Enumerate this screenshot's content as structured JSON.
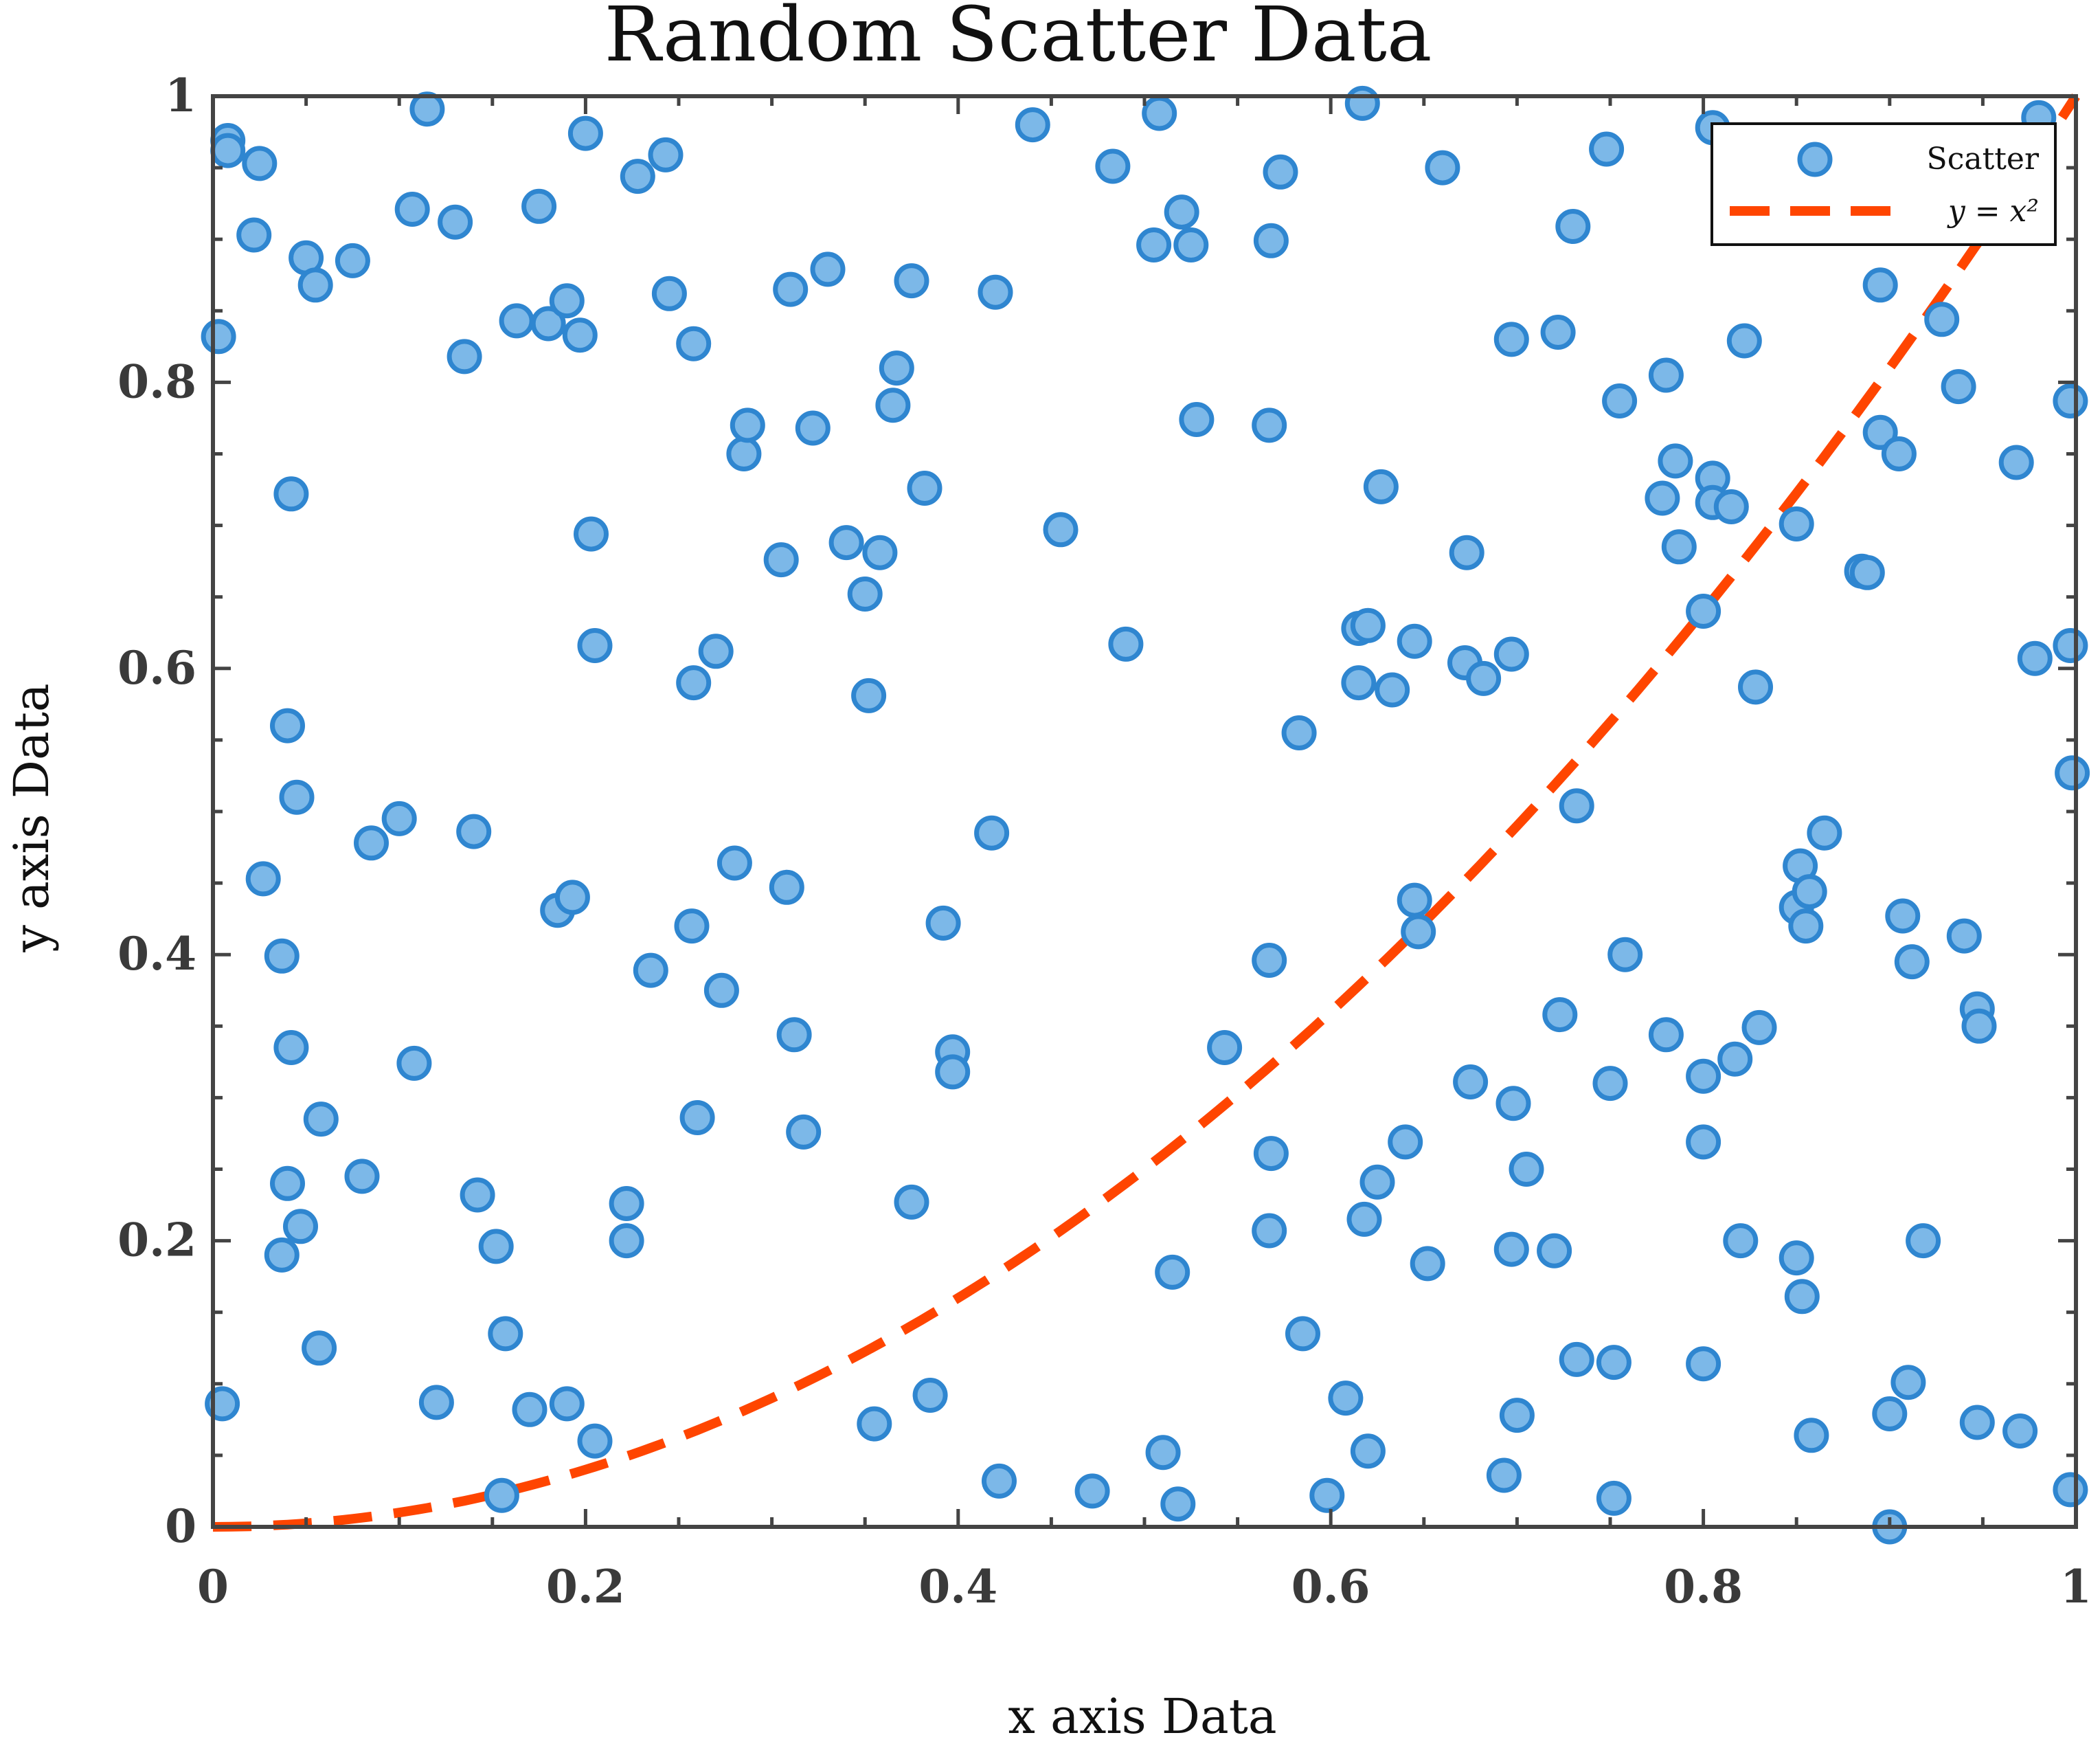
{
  "chart_data": {
    "type": "scatter",
    "title": "Random Scatter Data",
    "xlabel": "x axis Data",
    "ylabel": "y axis Data",
    "xlim": [
      0,
      1
    ],
    "ylim": [
      0,
      1
    ],
    "xticks": [
      0,
      0.2,
      0.4,
      0.6,
      0.8,
      1
    ],
    "yticks": [
      0,
      0.2,
      0.4,
      0.6,
      0.8,
      1
    ],
    "xtick_labels": [
      "0",
      "0.2",
      "0.4",
      "0.6",
      "0.8",
      "1"
    ],
    "ytick_labels": [
      "0",
      "0.2",
      "0.4",
      "0.6",
      "0.8",
      "1"
    ],
    "grid": false,
    "legend": {
      "position": "top-right",
      "entries": [
        "Scatter",
        "y = x²"
      ]
    },
    "colors": {
      "scatter_fill": "#7cb8e8",
      "scatter_edge": "#2f86d0",
      "line": "#ff4500",
      "axis": "#444444"
    },
    "series": [
      {
        "name": "Scatter",
        "kind": "scatter",
        "points": [
          [
            0.003,
            0.832
          ],
          [
            0.008,
            0.969
          ],
          [
            0.008,
            0.962
          ],
          [
            0.025,
            0.953
          ],
          [
            0.022,
            0.903
          ],
          [
            0.05,
            0.887
          ],
          [
            0.055,
            0.868
          ],
          [
            0.075,
            0.885
          ],
          [
            0.115,
            0.991
          ],
          [
            0.107,
            0.921
          ],
          [
            0.13,
            0.912
          ],
          [
            0.175,
            0.923
          ],
          [
            0.2,
            0.974
          ],
          [
            0.228,
            0.944
          ],
          [
            0.243,
            0.959
          ],
          [
            0.245,
            0.862
          ],
          [
            0.135,
            0.818
          ],
          [
            0.163,
            0.843
          ],
          [
            0.18,
            0.841
          ],
          [
            0.19,
            0.857
          ],
          [
            0.197,
            0.833
          ],
          [
            0.258,
            0.827
          ],
          [
            0.042,
            0.722
          ],
          [
            0.203,
            0.694
          ],
          [
            0.205,
            0.616
          ],
          [
            0.04,
            0.56
          ],
          [
            0.045,
            0.51
          ],
          [
            0.085,
            0.478
          ],
          [
            0.1,
            0.495
          ],
          [
            0.14,
            0.486
          ],
          [
            0.185,
            0.431
          ],
          [
            0.193,
            0.44
          ],
          [
            0.027,
            0.453
          ],
          [
            0.037,
            0.399
          ],
          [
            0.042,
            0.335
          ],
          [
            0.058,
            0.285
          ],
          [
            0.04,
            0.24
          ],
          [
            0.047,
            0.21
          ],
          [
            0.037,
            0.19
          ],
          [
            0.08,
            0.245
          ],
          [
            0.108,
            0.324
          ],
          [
            0.142,
            0.232
          ],
          [
            0.152,
            0.196
          ],
          [
            0.157,
            0.135
          ],
          [
            0.057,
            0.125
          ],
          [
            0.005,
            0.086
          ],
          [
            0.12,
            0.087
          ],
          [
            0.17,
            0.082
          ],
          [
            0.19,
            0.086
          ],
          [
            0.205,
            0.06
          ],
          [
            0.155,
            0.022
          ],
          [
            0.222,
            0.226
          ],
          [
            0.222,
            0.2
          ],
          [
            0.235,
            0.389
          ],
          [
            0.257,
            0.42
          ],
          [
            0.26,
            0.286
          ],
          [
            0.258,
            0.59
          ],
          [
            0.27,
            0.612
          ],
          [
            0.273,
            0.375
          ],
          [
            0.28,
            0.464
          ],
          [
            0.285,
            0.75
          ],
          [
            0.287,
            0.77
          ],
          [
            0.305,
            0.676
          ],
          [
            0.308,
            0.447
          ],
          [
            0.312,
            0.344
          ],
          [
            0.317,
            0.276
          ],
          [
            0.31,
            0.865
          ],
          [
            0.322,
            0.768
          ],
          [
            0.33,
            0.879
          ],
          [
            0.34,
            0.688
          ],
          [
            0.35,
            0.652
          ],
          [
            0.352,
            0.581
          ],
          [
            0.358,
            0.681
          ],
          [
            0.367,
            0.81
          ],
          [
            0.365,
            0.784
          ],
          [
            0.375,
            0.871
          ],
          [
            0.382,
            0.726
          ],
          [
            0.375,
            0.227
          ],
          [
            0.385,
            0.092
          ],
          [
            0.355,
            0.072
          ],
          [
            0.392,
            0.422
          ],
          [
            0.397,
            0.332
          ],
          [
            0.397,
            0.318
          ],
          [
            0.42,
            0.863
          ],
          [
            0.418,
            0.485
          ],
          [
            0.422,
            0.032
          ],
          [
            0.44,
            0.98
          ],
          [
            0.455,
            0.697
          ],
          [
            0.472,
            0.025
          ],
          [
            0.483,
            0.951
          ],
          [
            0.49,
            0.617
          ],
          [
            0.505,
            0.896
          ],
          [
            0.508,
            0.988
          ],
          [
            0.52,
            0.919
          ],
          [
            0.525,
            0.896
          ],
          [
            0.528,
            0.774
          ],
          [
            0.515,
            0.178
          ],
          [
            0.51,
            0.052
          ],
          [
            0.518,
            0.016
          ],
          [
            0.543,
            0.335
          ],
          [
            0.567,
            0.77
          ],
          [
            0.568,
            0.899
          ],
          [
            0.573,
            0.947
          ],
          [
            0.567,
            0.396
          ],
          [
            0.568,
            0.261
          ],
          [
            0.567,
            0.207
          ],
          [
            0.585,
            0.135
          ],
          [
            0.583,
            0.555
          ],
          [
            0.598,
            0.022
          ],
          [
            0.608,
            0.09
          ],
          [
            0.617,
            0.995
          ],
          [
            0.615,
            0.628
          ],
          [
            0.62,
            0.63
          ],
          [
            0.615,
            0.59
          ],
          [
            0.627,
            0.727
          ],
          [
            0.633,
            0.585
          ],
          [
            0.618,
            0.215
          ],
          [
            0.625,
            0.241
          ],
          [
            0.62,
            0.053
          ],
          [
            0.64,
            0.269
          ],
          [
            0.645,
            0.619
          ],
          [
            0.645,
            0.438
          ],
          [
            0.647,
            0.416
          ],
          [
            0.652,
            0.184
          ],
          [
            0.66,
            0.95
          ],
          [
            0.672,
            0.604
          ],
          [
            0.673,
            0.681
          ],
          [
            0.675,
            0.311
          ],
          [
            0.682,
            0.593
          ],
          [
            0.697,
            0.83
          ],
          [
            0.697,
            0.61
          ],
          [
            0.698,
            0.296
          ],
          [
            0.697,
            0.194
          ],
          [
            0.7,
            0.078
          ],
          [
            0.705,
            0.25
          ],
          [
            0.693,
            0.036
          ],
          [
            0.722,
            0.835
          ],
          [
            0.73,
            0.909
          ],
          [
            0.732,
            0.504
          ],
          [
            0.723,
            0.358
          ],
          [
            0.72,
            0.193
          ],
          [
            0.732,
            0.117
          ],
          [
            0.752,
            0.115
          ],
          [
            0.748,
            0.963
          ],
          [
            0.755,
            0.787
          ],
          [
            0.758,
            0.4
          ],
          [
            0.75,
            0.31
          ],
          [
            0.752,
            0.02
          ],
          [
            0.78,
            0.805
          ],
          [
            0.785,
            0.745
          ],
          [
            0.778,
            0.719
          ],
          [
            0.787,
            0.685
          ],
          [
            0.78,
            0.344
          ],
          [
            0.8,
            0.64
          ],
          [
            0.805,
            0.978
          ],
          [
            0.805,
            0.733
          ],
          [
            0.805,
            0.716
          ],
          [
            0.815,
            0.713
          ],
          [
            0.822,
            0.829
          ],
          [
            0.828,
            0.587
          ],
          [
            0.8,
            0.315
          ],
          [
            0.8,
            0.269
          ],
          [
            0.82,
            0.2
          ],
          [
            0.817,
            0.327
          ],
          [
            0.83,
            0.349
          ],
          [
            0.8,
            0.114
          ],
          [
            0.85,
            0.701
          ],
          [
            0.852,
            0.954
          ],
          [
            0.852,
            0.462
          ],
          [
            0.85,
            0.433
          ],
          [
            0.857,
            0.444
          ],
          [
            0.855,
            0.42
          ],
          [
            0.865,
            0.485
          ],
          [
            0.85,
            0.188
          ],
          [
            0.853,
            0.161
          ],
          [
            0.858,
            0.064
          ],
          [
            0.885,
            0.668
          ],
          [
            0.888,
            0.667
          ],
          [
            0.895,
            0.868
          ],
          [
            0.895,
            0.765
          ],
          [
            0.905,
            0.75
          ],
          [
            0.907,
            0.427
          ],
          [
            0.912,
            0.395
          ],
          [
            0.918,
            0.2
          ],
          [
            0.91,
            0.101
          ],
          [
            0.9,
            0.079
          ],
          [
            0.9,
            0.0
          ],
          [
            0.928,
            0.844
          ],
          [
            0.937,
            0.797
          ],
          [
            0.94,
            0.413
          ],
          [
            0.947,
            0.362
          ],
          [
            0.948,
            0.35
          ],
          [
            0.947,
            0.073
          ],
          [
            0.968,
            0.744
          ],
          [
            0.978,
            0.607
          ],
          [
            0.98,
            0.985
          ],
          [
            0.97,
            0.067
          ],
          [
            0.997,
            0.787
          ],
          [
            0.997,
            0.616
          ],
          [
            0.998,
            0.527
          ],
          [
            0.997,
            0.026
          ]
        ]
      },
      {
        "name": "y = x²",
        "kind": "line",
        "style": "dashed",
        "function": "x^2",
        "x": [
          0,
          0.05,
          0.1,
          0.15,
          0.2,
          0.25,
          0.3,
          0.35,
          0.4,
          0.45,
          0.5,
          0.55,
          0.6,
          0.65,
          0.7,
          0.75,
          0.8,
          0.85,
          0.9,
          0.95,
          1
        ],
        "y": [
          0,
          0.0025,
          0.01,
          0.0225,
          0.04,
          0.0625,
          0.09,
          0.1225,
          0.16,
          0.2025,
          0.25,
          0.3025,
          0.36,
          0.4225,
          0.49,
          0.5625,
          0.64,
          0.7225,
          0.81,
          0.9025,
          1
        ]
      }
    ]
  }
}
